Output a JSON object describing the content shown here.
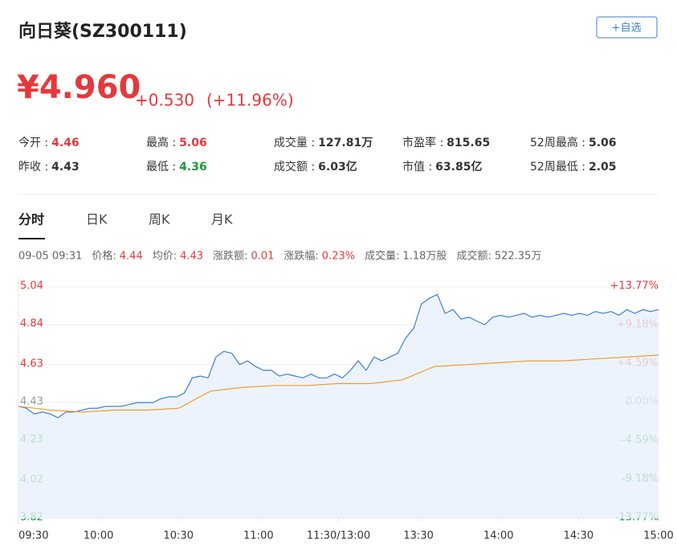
{
  "header": {
    "title": "向日葵(SZ300111)",
    "button": "+自选"
  },
  "quote": {
    "price": "¥4.960",
    "change": "+0.530",
    "percent": "(+11.96%)",
    "color": "#e4393c"
  },
  "stats": [
    {
      "label": "今开 :",
      "value": "4.46",
      "color": "#e4393c"
    },
    {
      "label": "最高 :",
      "value": "5.06",
      "color": "#e4393c"
    },
    {
      "label": "成交量 :",
      "value": "127.81万"
    },
    {
      "label": "市盈率 :",
      "value": "815.65"
    },
    {
      "label": "52周最高 :",
      "value": "5.06"
    },
    {
      "label": "昨收 :",
      "value": "4.43"
    },
    {
      "label": "最低 :",
      "value": "4.36",
      "color": "#1a9a3a"
    },
    {
      "label": "成交额 :",
      "value": "6.03亿"
    },
    {
      "label": "市值 :",
      "value": "63.85亿"
    },
    {
      "label": "52周最低 :",
      "value": "2.05"
    }
  ],
  "tabs": [
    "分时",
    "日K",
    "周K",
    "月K"
  ],
  "info": [
    {
      "value": "09-05 09:31"
    },
    {
      "label": "价格:",
      "value": "4.44",
      "color": "#e4393c"
    },
    {
      "label": "均价:",
      "value": "4.43",
      "color": "#e4393c"
    },
    {
      "label": "涨跌额:",
      "value": "0.01",
      "color": "#e4393c"
    },
    {
      "label": "涨跌幅:",
      "value": "0.23%",
      "color": "#e4393c"
    },
    {
      "label": "成交量:",
      "value": "1.18万股"
    },
    {
      "label": "成交额:",
      "value": "522.35万"
    }
  ],
  "chart_data": {
    "type": "line",
    "xlim": [
      0,
      240
    ],
    "xticks": [
      {
        "value": 0,
        "label": "09:30"
      },
      {
        "value": 30,
        "label": "10:00"
      },
      {
        "value": 60,
        "label": "10:30"
      },
      {
        "value": 90,
        "label": "11:00"
      },
      {
        "value": 120,
        "label": "11:30/13:00"
      },
      {
        "value": 150,
        "label": "13:30"
      },
      {
        "value": 180,
        "label": "14:00"
      },
      {
        "value": 210,
        "label": "14:30"
      },
      {
        "value": 240,
        "label": "15:00"
      }
    ],
    "ylim": [
      3.82,
      5.04
    ],
    "yticks": [
      5.04,
      4.84,
      4.63,
      4.43,
      4.23,
      4.02,
      3.82
    ],
    "y2lim": [
      -13.77,
      13.77
    ],
    "y2ticks": [
      {
        "value": 13.77,
        "label": "+13.77%"
      },
      {
        "value": 9.18,
        "label": "+9.18%"
      },
      {
        "value": 4.59,
        "label": "+4.59%"
      },
      {
        "value": 0,
        "label": "0.00%"
      },
      {
        "value": -4.59,
        "label": "-4.59%"
      },
      {
        "value": -9.18,
        "label": "-9.18%"
      },
      {
        "value": -13.77,
        "label": "-13.77%"
      }
    ],
    "grid": true,
    "series": [
      {
        "name": "价格",
        "color": "#3d7fd6",
        "values": [
          4.41,
          4.4,
          4.37,
          4.38,
          4.37,
          4.35,
          4.38,
          4.38,
          4.39,
          4.4,
          4.4,
          4.41,
          4.41,
          4.41,
          4.42,
          4.43,
          4.43,
          4.43,
          4.45,
          4.46,
          4.46,
          4.48,
          4.56,
          4.57,
          4.56,
          4.67,
          4.7,
          4.69,
          4.63,
          4.65,
          4.62,
          4.6,
          4.6,
          4.57,
          4.58,
          4.57,
          4.56,
          4.58,
          4.56,
          4.56,
          4.58,
          4.56,
          4.6,
          4.65,
          4.6,
          4.67,
          4.65,
          4.67,
          4.69,
          4.77,
          4.82,
          4.95,
          4.98,
          5.0,
          4.9,
          4.92,
          4.87,
          4.88,
          4.86,
          4.84,
          4.88,
          4.89,
          4.88,
          4.89,
          4.9,
          4.88,
          4.89,
          4.88,
          4.89,
          4.9,
          4.89,
          4.9,
          4.89,
          4.91,
          4.9,
          4.91,
          4.89,
          4.92,
          4.9,
          4.92,
          4.91,
          4.92
        ]
      },
      {
        "name": "均价",
        "color": "#f39c2a",
        "values": [
          4.41,
          4.39,
          4.38,
          4.39,
          4.39,
          4.4,
          4.49,
          4.51,
          4.52,
          4.52,
          4.53,
          4.53,
          4.55,
          4.62,
          4.63,
          4.64,
          4.65,
          4.65,
          4.66,
          4.67,
          4.68
        ]
      }
    ]
  }
}
